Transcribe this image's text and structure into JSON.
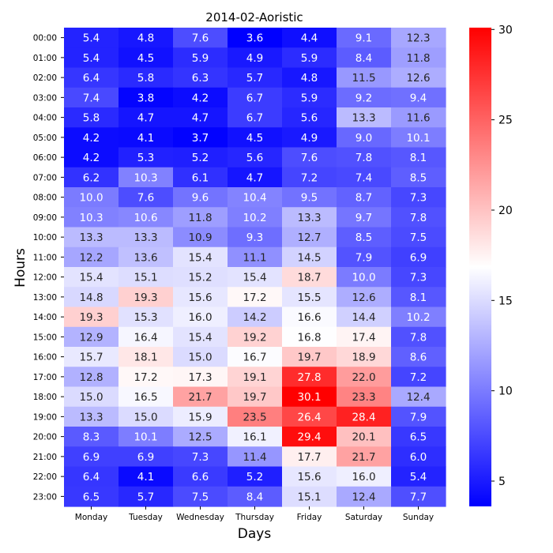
{
  "chart_data": {
    "type": "heatmap",
    "title": "2014-02-Aoristic",
    "xlabel": "Days",
    "ylabel": "Hours",
    "x_categories": [
      "Monday",
      "Tuesday",
      "Wednesday",
      "Thursday",
      "Friday",
      "Saturday",
      "Sunday"
    ],
    "y_categories": [
      "00:00",
      "01:00",
      "02:00",
      "03:00",
      "04:00",
      "05:00",
      "06:00",
      "07:00",
      "08:00",
      "09:00",
      "10:00",
      "11:00",
      "12:00",
      "13:00",
      "14:00",
      "15:00",
      "16:00",
      "17:00",
      "18:00",
      "19:00",
      "20:00",
      "21:00",
      "22:00",
      "23:00"
    ],
    "values": [
      [
        5.4,
        4.8,
        7.6,
        3.6,
        4.4,
        9.1,
        12.3
      ],
      [
        5.4,
        4.5,
        5.9,
        4.9,
        5.9,
        8.4,
        11.8
      ],
      [
        6.4,
        5.8,
        6.3,
        5.7,
        4.8,
        11.5,
        12.6
      ],
      [
        7.4,
        3.8,
        4.2,
        6.7,
        5.9,
        9.2,
        9.4
      ],
      [
        5.8,
        4.7,
        4.7,
        6.7,
        5.6,
        13.3,
        11.6
      ],
      [
        4.2,
        4.1,
        3.7,
        4.5,
        4.9,
        9.0,
        10.1
      ],
      [
        4.2,
        5.3,
        5.2,
        5.6,
        7.6,
        7.8,
        8.1
      ],
      [
        6.2,
        10.3,
        6.1,
        4.7,
        7.2,
        7.4,
        8.5
      ],
      [
        10.0,
        7.6,
        9.6,
        10.4,
        9.5,
        8.7,
        7.3
      ],
      [
        10.3,
        10.6,
        11.8,
        10.2,
        13.3,
        9.7,
        7.8
      ],
      [
        13.3,
        13.3,
        10.9,
        9.3,
        12.7,
        8.5,
        7.5
      ],
      [
        12.2,
        13.6,
        15.4,
        11.1,
        14.5,
        7.9,
        6.9
      ],
      [
        15.4,
        15.1,
        15.2,
        15.4,
        18.7,
        10.0,
        7.3
      ],
      [
        14.8,
        19.3,
        15.6,
        17.2,
        15.5,
        12.6,
        8.1
      ],
      [
        19.3,
        15.3,
        16.0,
        14.2,
        16.6,
        14.4,
        10.2
      ],
      [
        12.9,
        16.4,
        15.4,
        19.2,
        16.8,
        17.4,
        7.8
      ],
      [
        15.7,
        18.1,
        15.0,
        16.7,
        19.7,
        18.9,
        8.6
      ],
      [
        12.8,
        17.2,
        17.3,
        19.1,
        27.8,
        22.0,
        7.2
      ],
      [
        15.0,
        16.5,
        21.7,
        19.7,
        30.1,
        23.3,
        12.4
      ],
      [
        13.3,
        15.0,
        15.9,
        23.5,
        26.4,
        28.4,
        7.9
      ],
      [
        8.3,
        10.1,
        12.5,
        16.1,
        29.4,
        20.1,
        6.5
      ],
      [
        6.9,
        6.9,
        7.3,
        11.4,
        17.7,
        21.7,
        6.0
      ],
      [
        6.4,
        4.1,
        6.6,
        5.2,
        15.6,
        16.0,
        5.4
      ],
      [
        6.5,
        5.7,
        7.5,
        8.4,
        15.1,
        12.4,
        7.7
      ]
    ],
    "colormap": "bwr",
    "colorbar": {
      "min": 3.6,
      "max": 30.1,
      "ticks": [
        5,
        10,
        15,
        20,
        25,
        30
      ]
    },
    "colors": {
      "low": "#0000ff",
      "mid": "#ffffff",
      "high": "#ff0000"
    }
  }
}
